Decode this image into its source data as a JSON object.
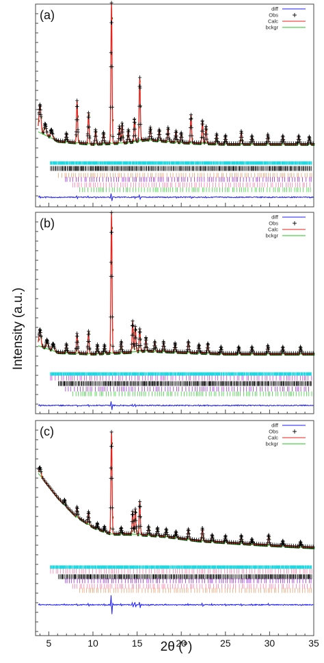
{
  "figure": {
    "ylabel": "Intensity (a.u.)",
    "xlabel": "2θ (°)"
  },
  "colors": {
    "diff": "#1a1aff",
    "obs": "#000000",
    "calc": "#e8221a",
    "bckgr": "#22c41a",
    "bg_points": "#0a5a0a",
    "phase_cyan": "#22d8e0",
    "phase_black": "#111111",
    "phase_magenta": "#d23be0",
    "phase_violet": "#9a2ad8",
    "phase_pink": "#ff7aa8",
    "phase_orange": "#e8a070",
    "phase_green": "#3ad23a"
  },
  "chart_data": [
    {
      "type": "line",
      "panel_label": "(a)",
      "xlim": [
        3.5,
        35
      ],
      "x_ticks": [
        "5",
        "10",
        "15",
        "20",
        "25",
        "30",
        "35"
      ],
      "legend": [
        "diff",
        "Obs",
        "Calc",
        "bckgr"
      ],
      "legend_position": "top-right",
      "background": {
        "x": [
          3.5,
          6,
          10,
          14,
          16,
          20,
          25,
          30,
          35
        ],
        "y": [
          12,
          5,
          3,
          4,
          6,
          4,
          3,
          3,
          3
        ]
      },
      "peaks": [
        {
          "x": 4.0,
          "y": 20
        },
        {
          "x": 4.6,
          "y": 8
        },
        {
          "x": 5.3,
          "y": 6
        },
        {
          "x": 7.0,
          "y": 6
        },
        {
          "x": 8.2,
          "y": 30
        },
        {
          "x": 9.5,
          "y": 22
        },
        {
          "x": 10.3,
          "y": 10
        },
        {
          "x": 11.2,
          "y": 8
        },
        {
          "x": 12.1,
          "y": 100
        },
        {
          "x": 13.0,
          "y": 12
        },
        {
          "x": 13.3,
          "y": 14
        },
        {
          "x": 14.0,
          "y": 9
        },
        {
          "x": 14.7,
          "y": 16
        },
        {
          "x": 15.3,
          "y": 45
        },
        {
          "x": 16.5,
          "y": 9
        },
        {
          "x": 17.5,
          "y": 8
        },
        {
          "x": 18.5,
          "y": 10
        },
        {
          "x": 19.4,
          "y": 8
        },
        {
          "x": 20.0,
          "y": 7
        },
        {
          "x": 21.1,
          "y": 20
        },
        {
          "x": 22.4,
          "y": 16
        },
        {
          "x": 22.8,
          "y": 12
        },
        {
          "x": 24.0,
          "y": 7
        },
        {
          "x": 25.0,
          "y": 6
        },
        {
          "x": 26.8,
          "y": 9
        },
        {
          "x": 28.0,
          "y": 6
        },
        {
          "x": 29.8,
          "y": 7
        },
        {
          "x": 31.5,
          "y": 6
        },
        {
          "x": 33.3,
          "y": 6
        },
        {
          "x": 34.5,
          "y": 5
        }
      ],
      "phases": [
        "cyan",
        "black",
        "orange",
        "violet",
        "pink",
        "green"
      ]
    },
    {
      "type": "line",
      "panel_label": "(b)",
      "xlim": [
        3.5,
        35
      ],
      "x_ticks": [
        "5",
        "10",
        "15",
        "20",
        "25",
        "30",
        "35"
      ],
      "legend": [
        "diff",
        "Obs",
        "Calc",
        "bckgr"
      ],
      "legend_position": "top-right",
      "background": {
        "x": [
          3.5,
          6,
          10,
          14,
          16,
          20,
          25,
          30,
          35
        ],
        "y": [
          8,
          3,
          2,
          3,
          4,
          3,
          2,
          2,
          2
        ]
      },
      "peaks": [
        {
          "x": 4.0,
          "y": 12
        },
        {
          "x": 4.8,
          "y": 6
        },
        {
          "x": 5.5,
          "y": 5
        },
        {
          "x": 7.0,
          "y": 6
        },
        {
          "x": 8.2,
          "y": 14
        },
        {
          "x": 9.5,
          "y": 16
        },
        {
          "x": 10.5,
          "y": 6
        },
        {
          "x": 11.3,
          "y": 6
        },
        {
          "x": 12.1,
          "y": 100
        },
        {
          "x": 13.2,
          "y": 8
        },
        {
          "x": 14.5,
          "y": 22
        },
        {
          "x": 14.8,
          "y": 18
        },
        {
          "x": 15.3,
          "y": 16
        },
        {
          "x": 16.0,
          "y": 9
        },
        {
          "x": 17.0,
          "y": 7
        },
        {
          "x": 18.0,
          "y": 7
        },
        {
          "x": 19.3,
          "y": 6
        },
        {
          "x": 20.8,
          "y": 8
        },
        {
          "x": 22.0,
          "y": 6
        },
        {
          "x": 23.0,
          "y": 7
        },
        {
          "x": 24.5,
          "y": 5
        },
        {
          "x": 26.5,
          "y": 5
        },
        {
          "x": 28.0,
          "y": 5
        },
        {
          "x": 29.8,
          "y": 6
        },
        {
          "x": 31.5,
          "y": 5
        },
        {
          "x": 33.5,
          "y": 5
        }
      ],
      "phases": [
        "cyan",
        "magenta",
        "black",
        "violet",
        "green"
      ]
    },
    {
      "type": "line",
      "panel_label": "(c)",
      "xlim": [
        3.5,
        35
      ],
      "x_ticks": [
        "5",
        "10",
        "15",
        "20",
        "25",
        "30",
        "35"
      ],
      "legend": [
        "diff",
        "Obs",
        "Calc",
        "bckgr"
      ],
      "legend_position": "top-right",
      "background": {
        "x": [
          3.5,
          4,
          6,
          8,
          10,
          12,
          14,
          18,
          22,
          26,
          30,
          35
        ],
        "y": [
          36,
          34,
          24,
          16,
          11,
          8,
          8,
          7,
          5,
          4,
          3,
          2
        ]
      },
      "peaks": [
        {
          "x": 4.0,
          "y": 6
        },
        {
          "x": 6.8,
          "y": 4
        },
        {
          "x": 8.2,
          "y": 8
        },
        {
          "x": 9.5,
          "y": 10
        },
        {
          "x": 10.5,
          "y": 4
        },
        {
          "x": 11.3,
          "y": 4
        },
        {
          "x": 12.1,
          "y": 80
        },
        {
          "x": 13.2,
          "y": 5
        },
        {
          "x": 14.5,
          "y": 18
        },
        {
          "x": 14.8,
          "y": 20
        },
        {
          "x": 15.3,
          "y": 26
        },
        {
          "x": 16.3,
          "y": 7
        },
        {
          "x": 17.3,
          "y": 6
        },
        {
          "x": 18.3,
          "y": 6
        },
        {
          "x": 19.4,
          "y": 5
        },
        {
          "x": 20.8,
          "y": 8
        },
        {
          "x": 22.4,
          "y": 10
        },
        {
          "x": 23.5,
          "y": 5
        },
        {
          "x": 25.0,
          "y": 5
        },
        {
          "x": 26.8,
          "y": 6
        },
        {
          "x": 28.0,
          "y": 4
        },
        {
          "x": 29.9,
          "y": 8
        },
        {
          "x": 31.5,
          "y": 4
        },
        {
          "x": 33.5,
          "y": 4
        }
      ],
      "phases": [
        "cyan",
        "pink",
        "black",
        "violet",
        "pink",
        "orange"
      ]
    }
  ]
}
